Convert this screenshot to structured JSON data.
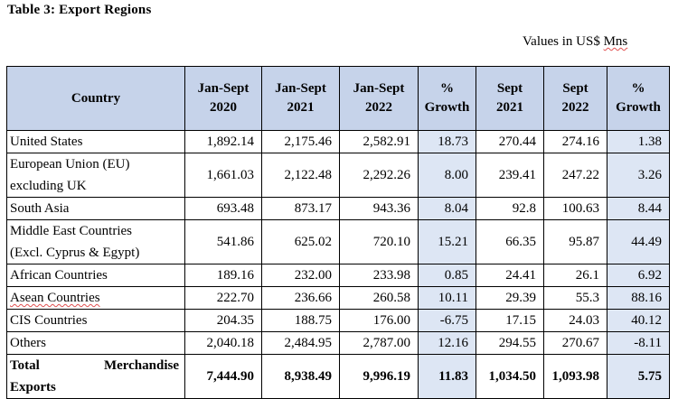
{
  "title": "Table 3: Export Regions",
  "units_prefix": "Values in US$ ",
  "units_suffix": "Mns",
  "columns": {
    "country": "Country",
    "c1": [
      "Jan-Sept",
      "2020"
    ],
    "c2": [
      "Jan-Sept",
      "2021"
    ],
    "c3": [
      "Jan-Sept",
      "2022"
    ],
    "c4": [
      "%",
      "Growth"
    ],
    "c5": [
      "Sept",
      "2021"
    ],
    "c6": [
      "Sept",
      "2022"
    ],
    "c7": [
      "%",
      "Growth"
    ]
  },
  "rows": [
    {
      "country": [
        "United States"
      ],
      "v": [
        "1,892.14",
        "2,175.46",
        "2,582.91",
        "18.73",
        "270.44",
        "274.16",
        "1.38"
      ]
    },
    {
      "country": [
        "European Union (EU)",
        "excluding UK"
      ],
      "v": [
        "1,661.03",
        "2,122.48",
        "2,292.26",
        "8.00",
        "239.41",
        "247.22",
        "3.26"
      ]
    },
    {
      "country": [
        "South Asia"
      ],
      "v": [
        "693.48",
        "873.17",
        "943.36",
        "8.04",
        "92.8",
        "100.63",
        "8.44"
      ]
    },
    {
      "country": [
        "Middle East Countries",
        "(Excl. Cyprus & Egypt)"
      ],
      "v": [
        "541.86",
        "625.02",
        "720.10",
        "15.21",
        "66.35",
        "95.87",
        "44.49"
      ]
    },
    {
      "country": [
        "African Countries"
      ],
      "v": [
        "189.16",
        "232.00",
        "233.98",
        "0.85",
        "24.41",
        "26.1",
        "6.92"
      ]
    },
    {
      "country": [
        "Asean Countries"
      ],
      "v": [
        "222.70",
        "236.66",
        "260.58",
        "10.11",
        "29.39",
        "55.3",
        "88.16"
      ]
    },
    {
      "country": [
        "CIS Countries"
      ],
      "v": [
        "204.35",
        "188.75",
        "176.00",
        "-6.75",
        "17.15",
        "24.03",
        "40.12"
      ]
    },
    {
      "country": [
        "Others"
      ],
      "v": [
        "2,040.18",
        "2,484.95",
        "2,787.00",
        "12.16",
        "294.55",
        "270.67",
        "-8.11"
      ]
    }
  ],
  "total": {
    "label_a": "Total",
    "label_b": "Merchandise",
    "label_c": "Exports",
    "v": [
      "7,444.90",
      "8,938.49",
      "9,996.19",
      "11.83",
      "1,034.50",
      "1,093.98",
      "5.75"
    ]
  }
}
